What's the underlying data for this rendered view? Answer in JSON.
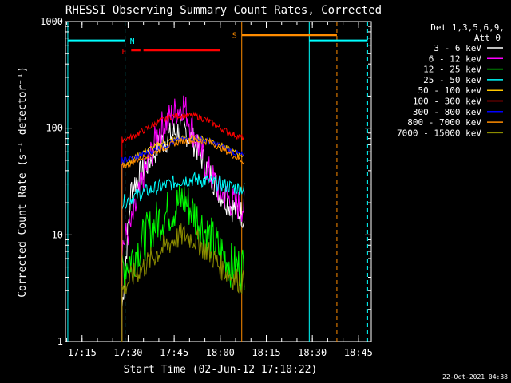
{
  "chart_data": {
    "type": "line",
    "title": "RHESSI Observing Summary Count Rates, Corrected",
    "xlabel": "Start Time (02-Jun-12 17:10:22)",
    "ylabel": "Corrected Count Rate (s⁻¹ detector⁻¹)",
    "yscale": "log",
    "ylim": [
      1,
      1000
    ],
    "xlim_minutes": [
      17.16,
      18.82
    ],
    "x_ticks": [
      "17:15",
      "17:30",
      "17:45",
      "18:00",
      "18:15",
      "18:30",
      "18:45"
    ],
    "y_ticks": [
      "1",
      "10",
      "100",
      "1000"
    ],
    "grid": false,
    "legend_position": "top-right",
    "legend_header": [
      "Det 1,3,5,6,9,",
      "Att 0"
    ],
    "footer_date": "22-Oct-2021 04:38",
    "series": [
      {
        "name": "3 - 6 keV",
        "color": "#ffffff",
        "x": [
          "17:28",
          "17:31",
          "17:35",
          "17:40",
          "17:45",
          "17:48",
          "17:52",
          "17:56",
          "18:00",
          "18:04",
          "18:08"
        ],
        "values": [
          2,
          28,
          40,
          70,
          90,
          100,
          70,
          40,
          25,
          18,
          15
        ]
      },
      {
        "name": "6 - 12 keV",
        "color": "#ff00ff",
        "x": [
          "17:28",
          "17:31",
          "17:35",
          "17:40",
          "17:45",
          "17:48",
          "17:52",
          "17:56",
          "18:00",
          "18:04",
          "18:08"
        ],
        "values": [
          8,
          12,
          35,
          95,
          140,
          170,
          80,
          40,
          25,
          20,
          18
        ]
      },
      {
        "name": "12 - 25 keV",
        "color": "#00ff00",
        "x": [
          "17:28",
          "17:31",
          "17:35",
          "17:40",
          "17:45",
          "17:48",
          "17:52",
          "17:56",
          "18:00",
          "18:04",
          "18:08"
        ],
        "values": [
          5,
          6,
          9,
          14,
          18,
          22,
          15,
          10,
          7,
          5,
          5
        ]
      },
      {
        "name": "25 - 50 keV",
        "color": "#00ffff",
        "x": [
          "17:28",
          "17:31",
          "17:35",
          "17:40",
          "17:45",
          "17:48",
          "17:52",
          "17:56",
          "18:00",
          "18:04",
          "18:08"
        ],
        "values": [
          20,
          22,
          25,
          28,
          31,
          33,
          33,
          32,
          30,
          28,
          27
        ]
      },
      {
        "name": "50 - 100 keV",
        "color": "#ffc800",
        "x": [
          "17:28",
          "17:31",
          "17:35",
          "17:40",
          "17:45",
          "17:48",
          "17:52",
          "17:56",
          "18:00",
          "18:04",
          "18:08"
        ],
        "values": [
          45,
          50,
          60,
          70,
          78,
          80,
          80,
          78,
          70,
          60,
          55
        ]
      },
      {
        "name": "100 - 300 keV",
        "color": "#ff0000",
        "x": [
          "17:28",
          "17:31",
          "17:35",
          "17:40",
          "17:45",
          "17:48",
          "17:52",
          "17:56",
          "18:00",
          "18:04",
          "18:08"
        ],
        "values": [
          78,
          82,
          95,
          115,
          130,
          132,
          130,
          118,
          100,
          88,
          80
        ]
      },
      {
        "name": "300 - 800 keV",
        "color": "#0000ff",
        "x": [
          "17:28",
          "17:31",
          "17:35",
          "17:40",
          "17:45",
          "17:48",
          "17:52",
          "17:56",
          "18:00",
          "18:04",
          "18:08"
        ],
        "values": [
          50,
          52,
          57,
          65,
          75,
          78,
          80,
          76,
          68,
          60,
          55
        ]
      },
      {
        "name": "800 - 7000 keV",
        "color": "#ff8c00",
        "x": [
          "17:28",
          "17:31",
          "17:35",
          "17:40",
          "17:45",
          "17:48",
          "17:52",
          "17:56",
          "18:00",
          "18:04",
          "18:08"
        ],
        "values": [
          44,
          47,
          54,
          62,
          72,
          76,
          77,
          75,
          66,
          56,
          48
        ]
      },
      {
        "name": "7000 - 15000 keV",
        "color": "#8c8c00",
        "x": [
          "17:28",
          "17:31",
          "17:35",
          "17:40",
          "17:45",
          "17:48",
          "17:52",
          "17:56",
          "18:00",
          "18:04",
          "18:08"
        ],
        "values": [
          3,
          4,
          5,
          7,
          9,
          10,
          9,
          7,
          5,
          4,
          3.5
        ]
      }
    ],
    "markers": {
      "orbit_lines_cyan_solid": [
        "17:10:22",
        "18:29"
      ],
      "orbit_lines_cyan_dashed": [
        "17:29",
        "18:48"
      ],
      "orange_lines_solid": [
        "18:07"
      ],
      "orange_lines_dashed": [
        "18:38"
      ],
      "cyan_bars": [
        {
          "from": "17:10:22",
          "to": "17:29",
          "level": 660
        },
        {
          "from": "18:29",
          "to": "18:48",
          "level": 660
        }
      ],
      "orange_bar": {
        "from": "18:07",
        "to": "18:38",
        "level": 750,
        "label": "S"
      },
      "night_label": "N",
      "flare_bars": [
        {
          "from": "17:31",
          "to": "17:34",
          "level": 540
        },
        {
          "from": "17:35",
          "to": "18:00",
          "level": 540
        }
      ],
      "flare_label": "F"
    }
  }
}
